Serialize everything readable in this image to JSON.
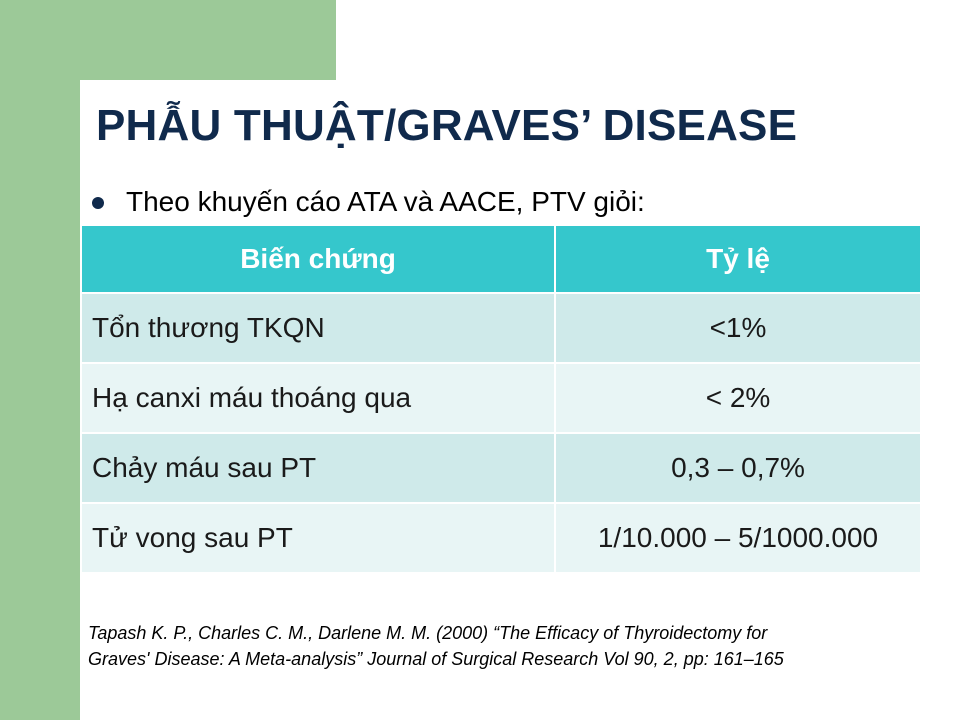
{
  "slide": {
    "title": "PHẪU THUẬT/GRAVES’ DISEASE",
    "bullet": "Theo khuyến cáo ATA và AACE, PTV giỏi:"
  },
  "table": {
    "headers": [
      "Biến chứng",
      "Tỷ lệ"
    ],
    "rows": [
      {
        "complication": "Tổn thương TKQN",
        "rate": "<1%"
      },
      {
        "complication": "Hạ canxi máu thoáng qua",
        "rate": "< 2%"
      },
      {
        "complication": "Chảy máu sau PT",
        "rate": "0,3 – 0,7%"
      },
      {
        "complication": "Tử vong sau PT",
        "rate": "1/10.000 – 5/1000.000"
      }
    ]
  },
  "reference": {
    "line1": "Tapash K. P., Charles C. M., Darlene M. M. (2000) “The Efficacy of  Thyroidectomy for",
    "line2": "Graves' Disease: A Meta-analysis”  Journal of Surgical Research Vol 90, 2, pp: 161–165"
  },
  "colors": {
    "green_accent": "#9cc998",
    "title_navy": "#102a4c",
    "header_teal": "#35c7cc",
    "row_dark": "#cfeaea",
    "row_light": "#e8f5f5"
  }
}
